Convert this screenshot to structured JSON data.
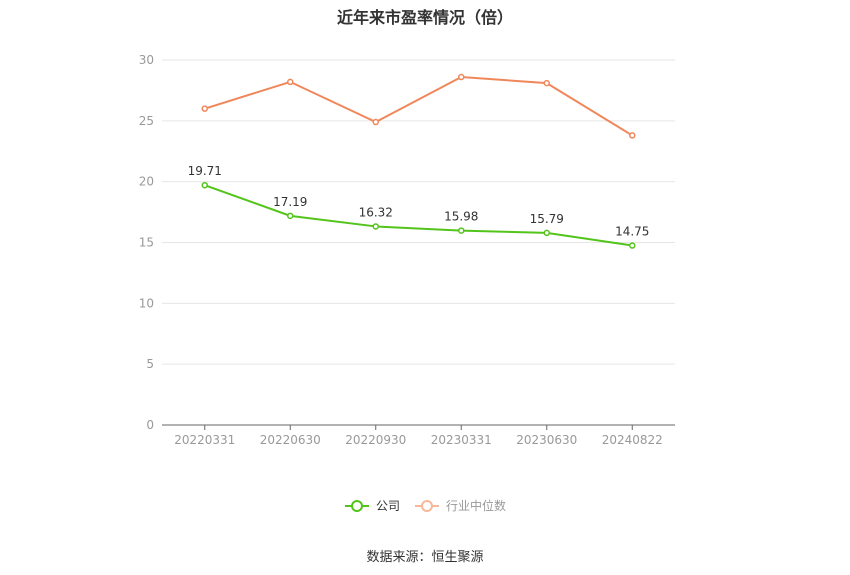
{
  "title": "近年来市盈率情况（倍）",
  "source_note": "数据来源：恒生聚源",
  "colors": {
    "company": "#52c41a",
    "industry": "#f0875a",
    "grid": "#e6e6e6",
    "axis": "#666666",
    "tick_text": "#999999"
  },
  "legend": {
    "company": "公司",
    "industry": "行业中位数"
  },
  "chart_data": {
    "type": "line",
    "title": "近年来市盈率情况（倍）",
    "categories": [
      "20220331",
      "20220630",
      "20220930",
      "20230331",
      "20230630",
      "20240822"
    ],
    "ylim": [
      0,
      30
    ],
    "yticks": [
      0,
      5,
      10,
      15,
      20,
      25,
      30
    ],
    "grid": true,
    "legend_position": "bottom",
    "series": [
      {
        "name": "公司",
        "values": [
          19.71,
          17.19,
          16.32,
          15.98,
          15.79,
          14.75
        ],
        "labels": [
          "19.71",
          "17.19",
          "16.32",
          "15.98",
          "15.79",
          "14.75"
        ],
        "color": "#52c41a"
      },
      {
        "name": "行业中位数",
        "values": [
          26.0,
          28.2,
          24.9,
          28.6,
          28.1,
          23.8
        ],
        "color": "#f0875a"
      }
    ]
  }
}
